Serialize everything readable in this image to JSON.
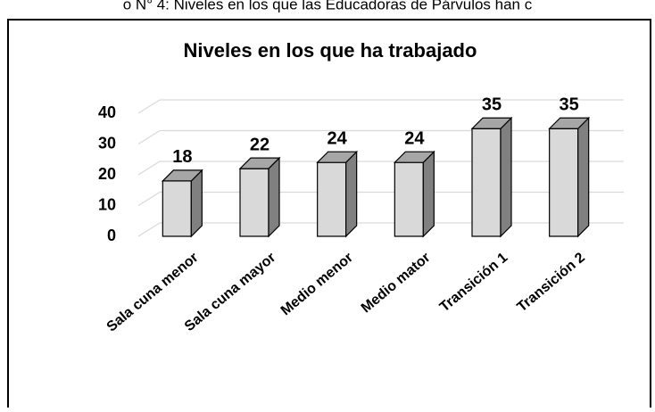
{
  "caption": "o N° 4: Niveles en los que las Educadoras de Párvulos han c",
  "chart_data": {
    "type": "bar3d",
    "title": "Niveles en los que ha trabajado",
    "categories": [
      "Sala cuna menor",
      "Sala cuna mayor",
      "Medio menor",
      "Medio mator",
      "Transición 1",
      "Transición 2"
    ],
    "values": [
      18,
      22,
      24,
      24,
      35,
      35
    ],
    "color": "#d9d9d9",
    "ylim": [
      0,
      40
    ],
    "yticks": [
      0,
      10,
      20,
      30,
      40
    ],
    "grid": true
  }
}
